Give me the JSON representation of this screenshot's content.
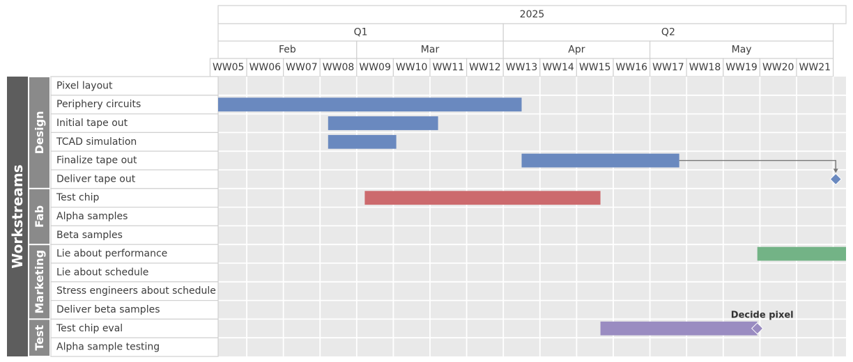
{
  "chart_data": {
    "type": "gantt",
    "year": "2025",
    "quarters": [
      {
        "label": "Q1",
        "first_week": 0,
        "last_week": 7
      },
      {
        "label": "Q2",
        "first_week": 8,
        "last_week": 16
      }
    ],
    "months": [
      {
        "label": "Feb",
        "first_week": 0,
        "last_week": 3
      },
      {
        "label": "Mar",
        "first_week": 4,
        "last_week": 7
      },
      {
        "label": "Apr",
        "first_week": 8,
        "last_week": 11
      },
      {
        "label": "May",
        "first_week": 12,
        "last_week": 16
      }
    ],
    "weeks": [
      "WW05",
      "WW06",
      "WW07",
      "WW08",
      "WW09",
      "WW10",
      "WW11",
      "WW12",
      "WW13",
      "WW14",
      "WW15",
      "WW16",
      "WW17",
      "WW18",
      "WW19",
      "WW20",
      "WW21"
    ],
    "axis_start_week": -0.28,
    "axis_end_week": 16.85,
    "axis_title": "Workstreams",
    "groups": [
      {
        "label": "Design",
        "rows": [
          "Pixel layout",
          "Periphery circuits",
          "Initial tape out",
          "TCAD simulation",
          "Finalize tape out",
          "Deliver tape out"
        ]
      },
      {
        "label": "Fab",
        "rows": [
          "Test chip",
          "Alpha samples",
          "Beta samples"
        ]
      },
      {
        "label": "Marketing",
        "rows": [
          "Lie about performance",
          "Lie about schedule",
          "Stress engineers about schedule",
          "Deliver beta samples"
        ]
      },
      {
        "label": "Test",
        "rows": [
          "Test chip eval",
          "Alpha sample testing"
        ]
      }
    ],
    "bars": [
      {
        "row": 1,
        "start": -0.28,
        "end": 8.0,
        "color": "#6a89bf",
        "group": "Design"
      },
      {
        "row": 2,
        "start": 2.72,
        "end": 5.72,
        "color": "#6a89bf",
        "group": "Design"
      },
      {
        "row": 3,
        "start": 2.72,
        "end": 4.58,
        "color": "#6a89bf",
        "group": "Design"
      },
      {
        "row": 4,
        "start": 8.0,
        "end": 12.3,
        "color": "#6a89bf",
        "group": "Design"
      },
      {
        "row": 6,
        "start": 3.72,
        "end": 10.15,
        "color": "#cc6a6d",
        "group": "Fab"
      },
      {
        "row": 9,
        "start": 14.43,
        "end": 16.85,
        "color": "#73b386",
        "group": "Marketing"
      },
      {
        "row": 13,
        "start": 10.15,
        "end": 14.43,
        "color": "#9a8cc1",
        "group": "Test"
      }
    ],
    "milestones": [
      {
        "row": 5,
        "at": 16.57,
        "color": "#6a89bf",
        "label": ""
      },
      {
        "row": 13,
        "at": 14.43,
        "color": "#9a8cc1",
        "label": "Decide pixel"
      }
    ],
    "dependencies": [
      {
        "from_row": 4,
        "from_at": 12.3,
        "to_row": 5,
        "to_at": 16.57
      }
    ]
  }
}
